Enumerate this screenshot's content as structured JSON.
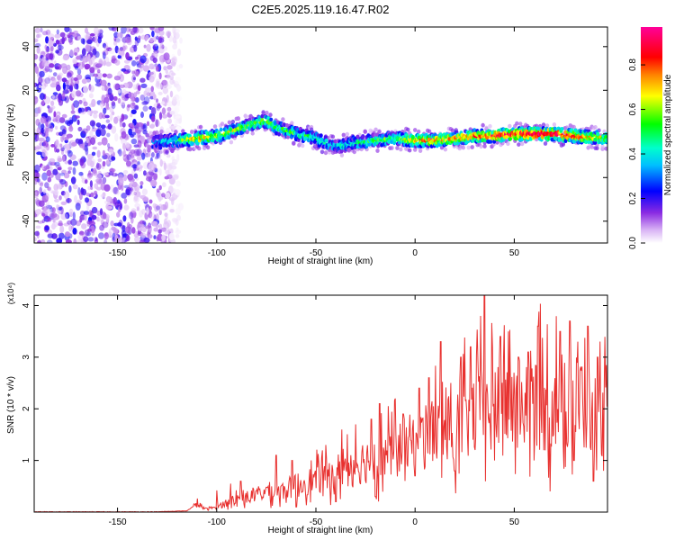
{
  "title": "C2E5.2025.119.16.47.R02",
  "colors": {
    "snr_line": "#e8312f",
    "frame": "#000000"
  },
  "chart_data": [
    {
      "type": "heatmap",
      "xlabel": "Height of straight line (km)",
      "ylabel": "Frequency (Hz)",
      "xlim": [
        -192,
        97
      ],
      "ylim": [
        -50,
        49
      ],
      "x_ticks": [
        -150,
        -100,
        -50,
        0,
        50
      ],
      "y_ticks": [
        -40,
        -20,
        0,
        20,
        40
      ],
      "colorbar": {
        "label": "Normalized spectral amplitude",
        "range": [
          0,
          0.97
        ],
        "ticks": [
          0.0,
          0.2,
          0.4,
          0.6,
          0.8
        ],
        "colormap": [
          "#ffffff",
          "#d9b3f5",
          "#8a2be2",
          "#0000ff",
          "#00bfff",
          "#00ffcc",
          "#00ff00",
          "#ffff00",
          "#ff8000",
          "#ff0000",
          "#ff0066",
          "#ff0099"
        ]
      },
      "ridge": {
        "x": [
          -130,
          -120,
          -110,
          -100,
          -90,
          -80,
          -75,
          -70,
          -60,
          -50,
          -40,
          -30,
          -20,
          -10,
          0,
          10,
          20,
          30,
          40,
          50,
          60,
          70,
          80,
          95
        ],
        "frequency": [
          -4,
          -3,
          -2,
          -1,
          2,
          5,
          6,
          3,
          0,
          -2,
          -6,
          -4,
          -3,
          -2,
          -3,
          -3,
          -2,
          -1,
          -1,
          0,
          0,
          0,
          -1,
          -2
        ],
        "amplitude": [
          0.35,
          0.5,
          0.7,
          0.6,
          0.6,
          0.55,
          0.6,
          0.5,
          0.5,
          0.45,
          0.4,
          0.45,
          0.5,
          0.55,
          0.7,
          0.75,
          0.7,
          0.75,
          0.8,
          0.85,
          0.9,
          0.9,
          0.8,
          0.6
        ]
      },
      "noise_region": {
        "x_range": [
          -192,
          -118
        ],
        "amplitude": 0.15
      }
    },
    {
      "type": "line",
      "xlabel": "Height of straight line (km)",
      "ylabel": "SNR (10 * v/v)",
      "y_multiplier": "(x10⁴)",
      "xlim": [
        -192,
        97
      ],
      "ylim": [
        0,
        4.2
      ],
      "x_ticks": [
        -150,
        -100,
        -50,
        0,
        50
      ],
      "y_ticks": [
        1,
        2,
        3,
        4
      ],
      "series": [
        {
          "x": [
            -192,
            -160,
            -130,
            -115,
            -110,
            -105,
            -100,
            -90,
            -80,
            -75,
            -70,
            -60,
            -50,
            -40,
            -30,
            -20,
            -10,
            0,
            5,
            10,
            15,
            20,
            25,
            30,
            35,
            40,
            45,
            50,
            55,
            60,
            65,
            70,
            75,
            80,
            85,
            90,
            95
          ],
          "y": [
            0.0,
            0.0,
            0.0,
            0.02,
            0.15,
            0.05,
            0.1,
            0.25,
            0.3,
            0.4,
            0.35,
            0.5,
            0.6,
            0.75,
            0.9,
            1.0,
            1.1,
            1.3,
            1.4,
            1.5,
            1.6,
            1.5,
            1.7,
            1.8,
            1.75,
            1.9,
            2.0,
            1.9,
            2.0,
            2.1,
            2.0,
            2.1,
            2.05,
            2.0,
            2.1,
            1.8,
            1.9
          ],
          "peaks": {
            "x": [
              -100,
              -93,
              -88,
              -70,
              -62,
              -60,
              -45,
              -37,
              -30,
              -22,
              -18,
              -10,
              -6,
              2,
              7,
              13,
              18,
              23,
              28,
              33,
              35,
              39,
              43,
              47,
              52,
              57,
              62,
              68,
              73,
              78,
              82,
              87,
              92,
              95
            ],
            "y": [
              0.42,
              0.55,
              0.6,
              1.1,
              1.0,
              1.2,
              1.3,
              1.6,
              1.7,
              1.8,
              2.1,
              2.2,
              1.9,
              2.4,
              2.6,
              3.3,
              2.5,
              3.0,
              3.2,
              3.8,
              4.2,
              3.2,
              3.4,
              3.5,
              3.0,
              3.1,
              3.6,
              3.3,
              3.5,
              3.7,
              3.3,
              3.6,
              3.0,
              3.4
            ]
          },
          "troughs": {
            "x": [
              -60,
              -40,
              -20,
              0,
              20,
              40,
              60,
              68,
              80,
              90,
              95
            ],
            "y": [
              0.1,
              0.2,
              0.3,
              0.7,
              0.8,
              1.0,
              1.0,
              0.4,
              1.0,
              0.6,
              0.8
            ]
          }
        }
      ]
    }
  ]
}
